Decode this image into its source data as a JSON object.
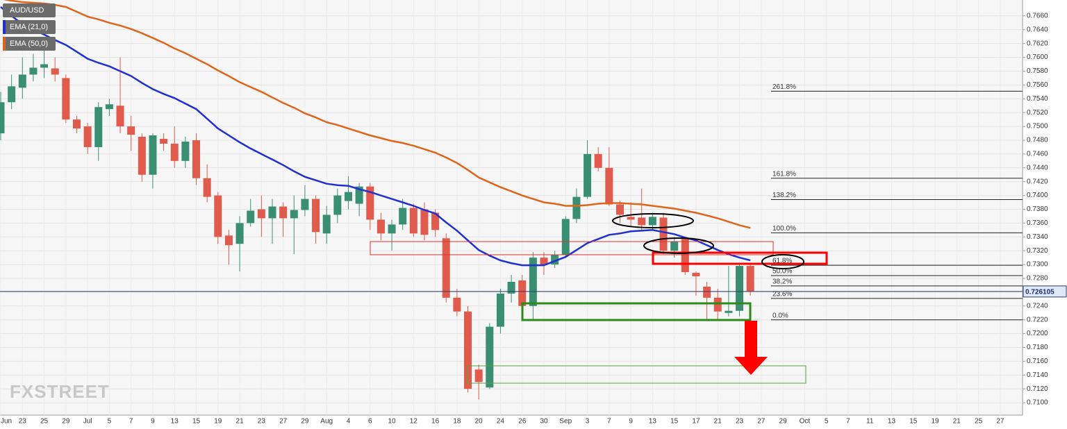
{
  "chart_data": {
    "type": "candlestick",
    "symbol": "AUD/USD",
    "watermark": "FXSTREET",
    "categories": [
      "Jun",
      null,
      "23",
      null,
      "25",
      null,
      "29",
      null,
      "Jul",
      null,
      "5",
      null,
      "7",
      null,
      "9",
      null,
      "13",
      null,
      "15",
      null,
      "19",
      null,
      "21",
      null,
      "23",
      null,
      "27",
      null,
      "29",
      null,
      "Aug",
      null,
      "4",
      null,
      "6",
      null,
      "10",
      null,
      "12",
      null,
      "16",
      null,
      "18",
      null,
      "20",
      null,
      "24",
      null,
      "26",
      null,
      "30",
      null,
      "Sep",
      null,
      "3",
      null,
      "7",
      null,
      "9",
      null,
      "13",
      null,
      "15",
      null,
      "17",
      null,
      "21",
      null,
      "23",
      null,
      "27",
      null,
      "29",
      null,
      "Oct",
      null,
      "5",
      null,
      "7",
      null,
      "11",
      null,
      "13",
      null,
      "15",
      null,
      "19",
      null,
      "21",
      null,
      "25",
      null,
      "27"
    ],
    "open": [
      0.749,
      0.7535,
      0.7556,
      0.7575,
      0.7585,
      0.7584,
      0.757,
      0.751,
      0.75,
      0.747,
      0.7525,
      0.753,
      0.75,
      0.7485,
      0.743,
      0.7482,
      0.7475,
      0.745,
      0.748,
      0.7425,
      0.74,
      0.7342,
      0.733,
      0.736,
      0.738,
      0.7367,
      0.7384,
      0.7367,
      0.7379,
      0.7395,
      0.7345,
      0.7372,
      0.7392,
      0.7388,
      0.7413,
      0.7365,
      0.7345,
      0.7358,
      0.7382,
      0.738,
      0.7375,
      0.7338,
      0.7252,
      0.7232,
      0.7148,
      0.7122,
      0.721,
      0.7258,
      0.7277,
      0.724,
      0.731,
      0.73,
      0.7314,
      0.7366,
      0.7398,
      0.746,
      0.744,
      0.7387,
      0.7369,
      0.7368,
      0.7357,
      0.7368,
      0.732,
      0.7337,
      0.7288,
      0.7268,
      0.7252,
      0.723,
      0.7233,
      0.7298,
      null,
      null,
      null,
      null,
      null,
      null,
      null,
      null,
      null,
      null,
      null,
      null,
      null,
      null,
      null,
      null,
      null,
      null,
      null,
      null,
      null,
      null,
      null
    ],
    "high": [
      0.755,
      0.7575,
      0.76,
      0.7605,
      0.762,
      0.76,
      0.7575,
      0.7515,
      0.7505,
      0.7535,
      0.754,
      0.76,
      0.7515,
      0.749,
      0.749,
      0.749,
      0.75,
      0.7485,
      0.749,
      0.7445,
      0.7405,
      0.735,
      0.737,
      0.7395,
      0.74,
      0.7395,
      0.739,
      0.74,
      0.7415,
      0.74,
      0.7385,
      0.741,
      0.7428,
      0.7418,
      0.7418,
      0.7375,
      0.7365,
      0.7395,
      0.7388,
      0.739,
      0.738,
      0.7345,
      0.7265,
      0.724,
      0.7155,
      0.7215,
      0.7265,
      0.7285,
      0.7285,
      0.7318,
      0.7318,
      0.732,
      0.737,
      0.741,
      0.748,
      0.747,
      0.747,
      0.7392,
      0.739,
      0.741,
      0.7375,
      0.7375,
      0.734,
      0.734,
      0.729,
      0.7275,
      0.7265,
      0.7298,
      0.73,
      0.73,
      null,
      null,
      null,
      null,
      null,
      null,
      null,
      null,
      null,
      null,
      null,
      null,
      null,
      null,
      null,
      null,
      null,
      null,
      null,
      null,
      null,
      null,
      null
    ],
    "low": [
      0.748,
      0.7525,
      0.754,
      0.7565,
      0.757,
      0.7565,
      0.7505,
      0.749,
      0.746,
      0.745,
      0.7515,
      0.749,
      0.7465,
      0.742,
      0.741,
      0.7465,
      0.744,
      0.744,
      0.7415,
      0.739,
      0.733,
      0.73,
      0.729,
      0.7355,
      0.734,
      0.733,
      0.734,
      0.7315,
      0.737,
      0.733,
      0.733,
      0.736,
      0.738,
      0.737,
      0.735,
      0.7335,
      0.732,
      0.735,
      0.734,
      0.7335,
      0.734,
      0.7245,
      0.7225,
      0.7115,
      0.7105,
      0.712,
      0.72,
      0.7245,
      0.7235,
      0.722,
      0.7285,
      0.7295,
      0.731,
      0.736,
      0.7395,
      0.7435,
      0.7385,
      0.736,
      0.7355,
      0.735,
      0.735,
      0.7315,
      0.731,
      0.7285,
      0.7255,
      0.722,
      0.722,
      0.7225,
      0.7225,
      0.7255,
      null,
      null,
      null,
      null,
      null,
      null,
      null,
      null,
      null,
      null,
      null,
      null,
      null,
      null,
      null,
      null,
      null,
      null,
      null,
      null,
      null,
      null,
      null
    ],
    "close": [
      0.7535,
      0.7558,
      0.7575,
      0.7585,
      0.759,
      0.7575,
      0.751,
      0.7497,
      0.747,
      0.7528,
      0.7532,
      0.75,
      0.7488,
      0.743,
      0.7487,
      0.7475,
      0.745,
      0.7478,
      0.7425,
      0.7398,
      0.734,
      0.7328,
      0.736,
      0.7378,
      0.7367,
      0.7384,
      0.7367,
      0.7379,
      0.7395,
      0.7347,
      0.7372,
      0.74,
      0.7405,
      0.7413,
      0.7365,
      0.7345,
      0.7358,
      0.7382,
      0.7345,
      0.7343,
      0.735,
      0.7252,
      0.7232,
      0.712,
      0.713,
      0.721,
      0.7258,
      0.7275,
      0.724,
      0.731,
      0.73,
      0.7314,
      0.7366,
      0.7398,
      0.746,
      0.744,
      0.7387,
      0.7372,
      0.7365,
      0.7357,
      0.7369,
      0.732,
      0.7333,
      0.7289,
      0.7283,
      0.7252,
      0.7232,
      0.7233,
      0.7298,
      0.7261,
      null,
      null,
      null,
      null,
      null,
      null,
      null,
      null,
      null,
      null,
      null,
      null,
      null,
      null,
      null,
      null,
      null,
      null,
      null,
      null,
      null,
      null,
      null
    ],
    "up_color": "#3a8f73",
    "down_color": "#e05b4b",
    "series": [
      {
        "name": "EMA (21,0)",
        "color": "#1f2fd6",
        "values": [
          0.7673,
          0.766,
          0.7648,
          0.764,
          0.7633,
          0.7625,
          0.7618,
          0.7608,
          0.7598,
          0.7592,
          0.7587,
          0.758,
          0.7573,
          0.7563,
          0.7554,
          0.7547,
          0.7541,
          0.7533,
          0.7525,
          0.7511,
          0.7497,
          0.7487,
          0.7477,
          0.7468,
          0.746,
          0.7452,
          0.7444,
          0.7435,
          0.7427,
          0.7422,
          0.7417,
          0.7415,
          0.7414,
          0.7409,
          0.7405,
          0.74,
          0.7395,
          0.739,
          0.7385,
          0.7379,
          0.7374,
          0.7361,
          0.7349,
          0.7335,
          0.7321,
          0.7313,
          0.7306,
          0.7302,
          0.7299,
          0.7299,
          0.7299,
          0.7305,
          0.7311,
          0.7321,
          0.7331,
          0.7337,
          0.7343,
          0.7345,
          0.7348,
          0.7349,
          0.735,
          0.7347,
          0.7344,
          0.7339,
          0.7335,
          0.7328,
          0.7321,
          0.7315,
          0.731,
          0.7306,
          null,
          null,
          null,
          null,
          null,
          null,
          null,
          null,
          null,
          null,
          null,
          null,
          null,
          null,
          null,
          null,
          null,
          null,
          null,
          null,
          null,
          null,
          null
        ]
      },
      {
        "name": "EMA (50,0)",
        "color": "#e0651a",
        "values": [
          0.7685,
          0.7682,
          0.768,
          0.7679,
          0.7678,
          0.7676,
          0.7673,
          0.7666,
          0.7659,
          0.7655,
          0.765,
          0.7646,
          0.7641,
          0.7635,
          0.7628,
          0.7621,
          0.7613,
          0.7606,
          0.7598,
          0.759,
          0.7581,
          0.7573,
          0.7564,
          0.7557,
          0.755,
          0.7542,
          0.7534,
          0.7527,
          0.7519,
          0.7513,
          0.7506,
          0.7502,
          0.7497,
          0.7492,
          0.7487,
          0.7483,
          0.7479,
          0.7476,
          0.7472,
          0.7467,
          0.7462,
          0.7455,
          0.7447,
          0.7437,
          0.7426,
          0.7419,
          0.7412,
          0.7406,
          0.74,
          0.7395,
          0.739,
          0.7388,
          0.7385,
          0.7385,
          0.7386,
          0.7388,
          0.7389,
          0.7389,
          0.7388,
          0.7387,
          0.7385,
          0.7383,
          0.7381,
          0.7378,
          0.7375,
          0.7371,
          0.7367,
          0.7362,
          0.7357,
          0.7353,
          null,
          null,
          null,
          null,
          null,
          null,
          null,
          null,
          null,
          null,
          null,
          null,
          null,
          null,
          null,
          null,
          null,
          null,
          null,
          null,
          null,
          null,
          null
        ]
      }
    ],
    "ylim": [
      0.7082,
      0.7683
    ],
    "yticks": [
      {
        "value": 0.71,
        "label": "0.7100"
      },
      {
        "value": 0.712,
        "label": "0.7120"
      },
      {
        "value": 0.714,
        "label": "0.7140"
      },
      {
        "value": 0.716,
        "label": "0.7160"
      },
      {
        "value": 0.718,
        "label": "0.7180"
      },
      {
        "value": 0.72,
        "label": "0.7200"
      },
      {
        "value": 0.722,
        "label": "0.7220"
      },
      {
        "value": 0.724,
        "label": "0.7240"
      },
      {
        "value": 0.726,
        "label": "0.7260"
      },
      {
        "value": 0.728,
        "label": "0.7280"
      },
      {
        "value": 0.73,
        "label": "0.7300"
      },
      {
        "value": 0.732,
        "label": "0.7320"
      },
      {
        "value": 0.734,
        "label": "0.7340"
      },
      {
        "value": 0.736,
        "label": "0.7360"
      },
      {
        "value": 0.738,
        "label": "0.7380"
      },
      {
        "value": 0.74,
        "label": "0.7400"
      },
      {
        "value": 0.742,
        "label": "0.7420"
      },
      {
        "value": 0.744,
        "label": "0.7440"
      },
      {
        "value": 0.746,
        "label": "0.7460"
      },
      {
        "value": 0.748,
        "label": "0.7480"
      },
      {
        "value": 0.75,
        "label": "0.7500"
      },
      {
        "value": 0.752,
        "label": "0.7520"
      },
      {
        "value": 0.754,
        "label": "0.7540"
      },
      {
        "value": 0.756,
        "label": "0.7560"
      },
      {
        "value": 0.758,
        "label": "0.7580"
      },
      {
        "value": 0.76,
        "label": "0.7600"
      },
      {
        "value": 0.762,
        "label": "0.7620"
      },
      {
        "value": 0.764,
        "label": "0.7640"
      },
      {
        "value": 0.766,
        "label": "0.7660"
      }
    ],
    "last_price": {
      "value": 0.726105,
      "label": "0.726105"
    },
    "fib_levels": [
      {
        "label": "261.8%",
        "value": 0.7551
      },
      {
        "label": "161.8%",
        "value": 0.7425
      },
      {
        "label": "138.2%",
        "value": 0.7394
      },
      {
        "label": "100.0%",
        "value": 0.7346
      },
      {
        "label": "61.8%",
        "value": 0.7299
      },
      {
        "label": "50.0%",
        "value": 0.7284
      },
      {
        "label": "38.2%",
        "value": 0.7269
      },
      {
        "label": "23.6%",
        "value": 0.7251
      },
      {
        "label": "0.0%",
        "value": 0.722
      }
    ],
    "grid": true
  }
}
